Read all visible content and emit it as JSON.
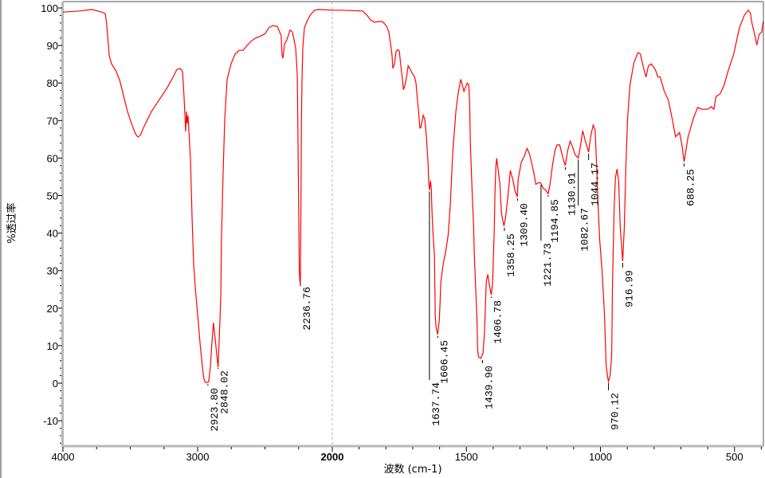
{
  "chart_data": {
    "type": "line",
    "title": "",
    "xlabel": "波数 (cm-1)",
    "ylabel": "%透过率",
    "xlim": [
      4000,
      390
    ],
    "x_scale_break": 2000,
    "ylim": [
      -16.8,
      101.7
    ],
    "grid": false,
    "line_color": "#ff0000",
    "x_ticks": [
      "4000",
      "3000",
      "2000",
      "1500",
      "1000",
      "500"
    ],
    "x_tick_values": [
      4000,
      3000,
      2000,
      1500,
      1000,
      500
    ],
    "y_ticks": [
      "100",
      "90",
      "80",
      "70",
      "60",
      "50",
      "40",
      "30",
      "20",
      "10",
      "0",
      "-10"
    ],
    "y_tick_values": [
      100,
      90,
      80,
      70,
      60,
      50,
      40,
      30,
      20,
      10,
      0,
      -10
    ],
    "series": [
      {
        "points": [
          [
            4000,
            98.9
          ],
          [
            3876,
            99.2
          ],
          [
            3787,
            99.6
          ],
          [
            3710,
            98.9
          ],
          [
            3686,
            98.5
          ],
          [
            3675,
            95.7
          ],
          [
            3657,
            87.3
          ],
          [
            3639,
            85.1
          ],
          [
            3609,
            83.4
          ],
          [
            3580,
            80.9
          ],
          [
            3550,
            76.6
          ],
          [
            3521,
            72.4
          ],
          [
            3491,
            69.2
          ],
          [
            3462,
            66.5
          ],
          [
            3444,
            65.6
          ],
          [
            3426,
            66.0
          ],
          [
            3402,
            68.1
          ],
          [
            3343,
            72.4
          ],
          [
            3284,
            75.6
          ],
          [
            3225,
            78.8
          ],
          [
            3178,
            81.9
          ],
          [
            3154,
            83.6
          ],
          [
            3130,
            83.9
          ],
          [
            3112,
            83.0
          ],
          [
            3101,
            76.6
          ],
          [
            3089,
            67.1
          ],
          [
            3083,
            72.4
          ],
          [
            3077,
            69.2
          ],
          [
            3071,
            71.3
          ],
          [
            3053,
            59.7
          ],
          [
            3041,
            43.7
          ],
          [
            3030,
            32.1
          ],
          [
            3018,
            25.7
          ],
          [
            3000,
            18.3
          ],
          [
            2982,
            10.8
          ],
          [
            2965,
            4.5
          ],
          [
            2953,
            1.1
          ],
          [
            2941,
            0.2
          ],
          [
            2923,
            0.2
          ],
          [
            2917,
            0.6
          ],
          [
            2905,
            4.5
          ],
          [
            2894,
            10.8
          ],
          [
            2882,
            16.1
          ],
          [
            2870,
            11.9
          ],
          [
            2858,
            7.6
          ],
          [
            2848,
            4.2
          ],
          [
            2834,
            17.2
          ],
          [
            2828,
            23.6
          ],
          [
            2823,
            38.4
          ],
          [
            2811,
            55.4
          ],
          [
            2799,
            70.3
          ],
          [
            2781,
            80.9
          ],
          [
            2752,
            85.1
          ],
          [
            2722,
            87.7
          ],
          [
            2692,
            88.7
          ],
          [
            2663,
            88.7
          ],
          [
            2633,
            90.0
          ],
          [
            2604,
            91.1
          ],
          [
            2574,
            91.9
          ],
          [
            2527,
            92.6
          ],
          [
            2497,
            93.2
          ],
          [
            2473,
            94.7
          ],
          [
            2444,
            95.3
          ],
          [
            2408,
            95.1
          ],
          [
            2379,
            92.6
          ],
          [
            2373,
            87.3
          ],
          [
            2367,
            86.6
          ],
          [
            2361,
            88.3
          ],
          [
            2355,
            90.4
          ],
          [
            2337,
            91.5
          ],
          [
            2314,
            94.1
          ],
          [
            2296,
            93.6
          ],
          [
            2284,
            91.5
          ],
          [
            2272,
            89.4
          ],
          [
            2260,
            81.9
          ],
          [
            2250,
            47.0
          ],
          [
            2245,
            30.0
          ],
          [
            2240,
            27.0
          ],
          [
            2237,
            26.3
          ],
          [
            2233,
            46.0
          ],
          [
            2229,
            70.0
          ],
          [
            2225,
            81.0
          ],
          [
            2219,
            89.4
          ],
          [
            2207,
            94.7
          ],
          [
            2184,
            96.8
          ],
          [
            2160,
            98.3
          ],
          [
            2130,
            99.4
          ],
          [
            2101,
            99.6
          ],
          [
            2000,
            99.4
          ],
          [
            1967,
            99.4
          ],
          [
            1887,
            99.2
          ],
          [
            1872,
            98.2
          ],
          [
            1857,
            96.8
          ],
          [
            1842,
            96.2
          ],
          [
            1827,
            96.4
          ],
          [
            1813,
            96.4
          ],
          [
            1798,
            95.2
          ],
          [
            1789,
            93.5
          ],
          [
            1783,
            90.7
          ],
          [
            1777,
            87.3
          ],
          [
            1774,
            83.9
          ],
          [
            1768,
            85.1
          ],
          [
            1762,
            88.5
          ],
          [
            1756,
            88.9
          ],
          [
            1750,
            88.5
          ],
          [
            1744,
            84.4
          ],
          [
            1738,
            80.6
          ],
          [
            1735,
            78.2
          ],
          [
            1729,
            79.4
          ],
          [
            1723,
            81.6
          ],
          [
            1717,
            84.6
          ],
          [
            1711,
            83.9
          ],
          [
            1705,
            83.0
          ],
          [
            1693,
            81.6
          ],
          [
            1688,
            80.0
          ],
          [
            1679,
            73.0
          ],
          [
            1673,
            68.0
          ],
          [
            1670,
            68.0
          ],
          [
            1661,
            71.4
          ],
          [
            1655,
            70.3
          ],
          [
            1649,
            65.7
          ],
          [
            1643,
            58.9
          ],
          [
            1640,
            53.0
          ],
          [
            1637,
            51.5
          ],
          [
            1634,
            54.0
          ],
          [
            1631,
            52.0
          ],
          [
            1628,
            45.2
          ],
          [
            1625,
            40.7
          ],
          [
            1619,
            33.8
          ],
          [
            1616,
            18.0
          ],
          [
            1613,
            15.0
          ],
          [
            1607,
            13.0
          ],
          [
            1601,
            16.8
          ],
          [
            1595,
            27.1
          ],
          [
            1586,
            32.0
          ],
          [
            1577,
            35.0
          ],
          [
            1568,
            39.5
          ],
          [
            1560,
            47.6
          ],
          [
            1551,
            61.2
          ],
          [
            1539,
            72.5
          ],
          [
            1530,
            77.6
          ],
          [
            1521,
            81.0
          ],
          [
            1515,
            79.4
          ],
          [
            1509,
            77.8
          ],
          [
            1497,
            80.0
          ],
          [
            1491,
            79.4
          ],
          [
            1488,
            74.8
          ],
          [
            1485,
            63.4
          ],
          [
            1479,
            52.1
          ],
          [
            1473,
            41.9
          ],
          [
            1470,
            33.8
          ],
          [
            1461,
            18.0
          ],
          [
            1458,
            9.0
          ],
          [
            1455,
            7.0
          ],
          [
            1446,
            6.6
          ],
          [
            1438,
            8.0
          ],
          [
            1432,
            14.0
          ],
          [
            1426,
            27.0
          ],
          [
            1420,
            29.0
          ],
          [
            1414,
            26.0
          ],
          [
            1407,
            23.5
          ],
          [
            1402,
            27.0
          ],
          [
            1396,
            40.7
          ],
          [
            1393,
            52.1
          ],
          [
            1390,
            57.7
          ],
          [
            1387,
            60.0
          ],
          [
            1384,
            58.2
          ],
          [
            1375,
            53.2
          ],
          [
            1369,
            45.2
          ],
          [
            1360,
            41.9
          ],
          [
            1354,
            44.1
          ],
          [
            1345,
            49.8
          ],
          [
            1336,
            56.7
          ],
          [
            1327,
            54.3
          ],
          [
            1318,
            51.0
          ],
          [
            1310,
            49.7
          ],
          [
            1307,
            54.3
          ],
          [
            1295,
            58.9
          ],
          [
            1283,
            60.7
          ],
          [
            1274,
            62.6
          ],
          [
            1265,
            61.2
          ],
          [
            1256,
            58.5
          ],
          [
            1247,
            55.5
          ],
          [
            1241,
            53.0
          ],
          [
            1229,
            53.5
          ],
          [
            1222,
            53.3
          ],
          [
            1214,
            52.0
          ],
          [
            1205,
            51.5
          ],
          [
            1195,
            50.5
          ],
          [
            1188,
            53.0
          ],
          [
            1179,
            58.0
          ],
          [
            1170,
            62.0
          ],
          [
            1162,
            63.5
          ],
          [
            1152,
            63.5
          ],
          [
            1140,
            60.0
          ],
          [
            1131,
            58.0
          ],
          [
            1122,
            62.0
          ],
          [
            1113,
            64.5
          ],
          [
            1104,
            63.0
          ],
          [
            1095,
            61.0
          ],
          [
            1083,
            60.0
          ],
          [
            1075,
            63.0
          ],
          [
            1066,
            67.3
          ],
          [
            1058,
            65.0
          ],
          [
            1050,
            63.0
          ],
          [
            1044,
            61.6
          ],
          [
            1036,
            66.0
          ],
          [
            1027,
            68.8
          ],
          [
            1020,
            67.5
          ],
          [
            1015,
            59.0
          ],
          [
            1009,
            47.6
          ],
          [
            1003,
            38.4
          ],
          [
            994,
            30.0
          ],
          [
            985,
            18.6
          ],
          [
            979,
            5.0
          ],
          [
            973,
            1.4
          ],
          [
            970,
            0.5
          ],
          [
            964,
            2.0
          ],
          [
            958,
            7.3
          ],
          [
            955,
            26.3
          ],
          [
            949,
            46.8
          ],
          [
            944,
            54.8
          ],
          [
            938,
            57.1
          ],
          [
            932,
            53.7
          ],
          [
            926,
            41.3
          ],
          [
            917,
            32.5
          ],
          [
            911,
            41.3
          ],
          [
            905,
            58.2
          ],
          [
            899,
            70.3
          ],
          [
            890,
            79.4
          ],
          [
            875,
            85.5
          ],
          [
            860,
            88.1
          ],
          [
            851,
            87.7
          ],
          [
            839,
            83.9
          ],
          [
            830,
            81.6
          ],
          [
            821,
            84.6
          ],
          [
            810,
            85.1
          ],
          [
            795,
            83.5
          ],
          [
            786,
            81.6
          ],
          [
            777,
            81.6
          ],
          [
            762,
            77.8
          ],
          [
            747,
            75.5
          ],
          [
            732,
            70.3
          ],
          [
            720,
            65.7
          ],
          [
            705,
            66.8
          ],
          [
            696,
            63.4
          ],
          [
            688,
            59.0
          ],
          [
            673,
            65.7
          ],
          [
            661,
            68.7
          ],
          [
            652,
            70.9
          ],
          [
            637,
            73.5
          ],
          [
            622,
            73.0
          ],
          [
            601,
            73.0
          ],
          [
            586,
            73.7
          ],
          [
            577,
            73.0
          ],
          [
            569,
            76.4
          ],
          [
            554,
            77.1
          ],
          [
            539,
            79.4
          ],
          [
            524,
            83.2
          ],
          [
            503,
            87.7
          ],
          [
            482,
            94.6
          ],
          [
            464,
            98.0
          ],
          [
            449,
            99.4
          ],
          [
            441,
            98.7
          ],
          [
            435,
            96.0
          ],
          [
            423,
            92.3
          ],
          [
            417,
            90.1
          ],
          [
            408,
            93.0
          ],
          [
            399,
            93.5
          ],
          [
            393,
            96.4
          ]
        ]
      }
    ],
    "peaks": [
      {
        "label": "2923.80",
        "x": 2923.8,
        "y": 0.2
      },
      {
        "label": "2848.02",
        "x": 2848.02,
        "y": 4.2
      },
      {
        "label": "2236.76",
        "x": 2236.76,
        "y": 26.3
      },
      {
        "label": "1637.74",
        "x": 1637.74,
        "y": 51.5
      },
      {
        "label": "1606.45",
        "x": 1606.45,
        "y": 13.0
      },
      {
        "label": "1439.90",
        "x": 1439.9,
        "y": 6.6
      },
      {
        "label": "1406.78",
        "x": 1406.78,
        "y": 23.5
      },
      {
        "label": "1358.25",
        "x": 1358.25,
        "y": 41.9
      },
      {
        "label": "1309.40",
        "x": 1309.4,
        "y": 49.7
      },
      {
        "label": "1221.73",
        "x": 1221.73,
        "y": 53.3
      },
      {
        "label": "1194.85",
        "x": 1194.85,
        "y": 50.5
      },
      {
        "label": "1130.91",
        "x": 1130.91,
        "y": 58.0
      },
      {
        "label": "1082.67",
        "x": 1082.67,
        "y": 60.0
      },
      {
        "label": "1044.17",
        "x": 1044.17,
        "y": 61.6
      },
      {
        "label": "970.12",
        "x": 970.12,
        "y": 0.5
      },
      {
        "label": "916.99",
        "x": 916.99,
        "y": 32.5
      },
      {
        "label": "688.25",
        "x": 688.25,
        "y": 59.0
      }
    ]
  }
}
